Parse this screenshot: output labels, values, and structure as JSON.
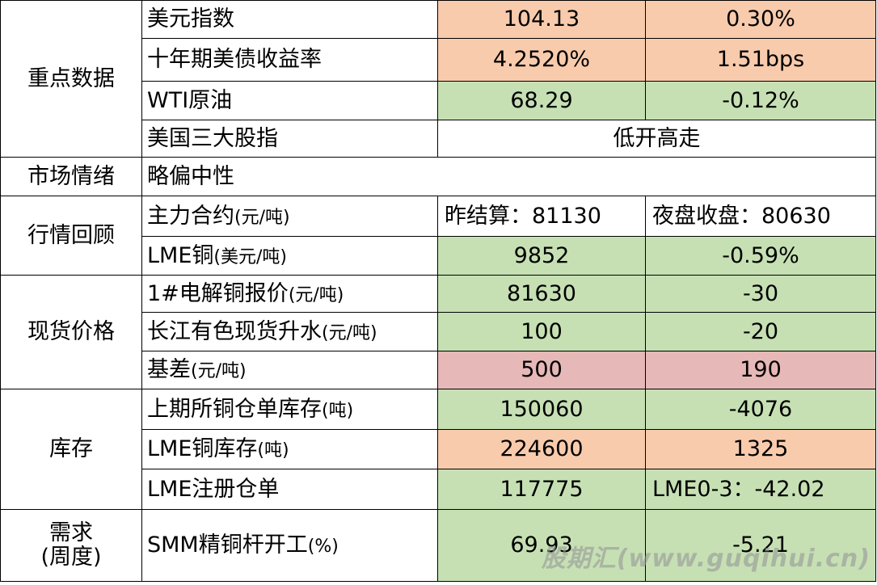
{
  "sections": {
    "key": "重点数据",
    "sentiment": "市场情绪",
    "review": "行情回顾",
    "spot": "现货价格",
    "stock": "库存",
    "demand_l1": "需求",
    "demand_l2": "(周度)"
  },
  "rows": {
    "usd": {
      "label": "美元指数",
      "v1": "104.13",
      "v2": "0.30%"
    },
    "ust10": {
      "label": "十年期美债收益率",
      "v1": "4.2520%",
      "v2": "1.51bps"
    },
    "wti": {
      "label": "WTI原油",
      "v1": "68.29",
      "v2": "-0.12%"
    },
    "us_index": {
      "label": "美国三大股指",
      "v": "低开高走"
    },
    "sentiment": {
      "label": "略偏中性"
    },
    "main_contract": {
      "label": "主力合约",
      "unit": "(元/吨)",
      "v1": "昨结算：81130",
      "v2": "夜盘收盘：80630"
    },
    "lme_cu": {
      "label": "LME铜",
      "unit": "(美元/吨)",
      "v1": "9852",
      "v2": "-0.59%"
    },
    "cu1": {
      "label": "1#电解铜报价",
      "unit": "(元/吨)",
      "v1": "81630",
      "v2": "-30"
    },
    "changjiang": {
      "label": "长江有色现货升水",
      "unit": "(元/吨)",
      "v1": "100",
      "v2": "-20"
    },
    "basis": {
      "label": "基差",
      "unit": "(元/吨)",
      "v1": "500",
      "v2": "190"
    },
    "shfe_stock": {
      "label": "上期所铜仓单库存",
      "unit": "(吨)",
      "v1": "150060",
      "v2": "-4076"
    },
    "lme_stock": {
      "label": "LME铜库存",
      "unit": "(吨)",
      "v1": "224600",
      "v2": "1325"
    },
    "lme_warrant": {
      "label": "LME注册仓单",
      "v1": "117775",
      "v2": "LME0-3：-42.02"
    },
    "smm": {
      "label": "SMM精铜杆开工",
      "unit": "(%)",
      "v1": "69.93",
      "v2": "-5.21"
    }
  },
  "watermark": "股期汇(www.guqihui.cn)",
  "colors": {
    "orange": "#f8cbad",
    "green": "#c6e0b4",
    "pink": "#e6b8b7"
  }
}
